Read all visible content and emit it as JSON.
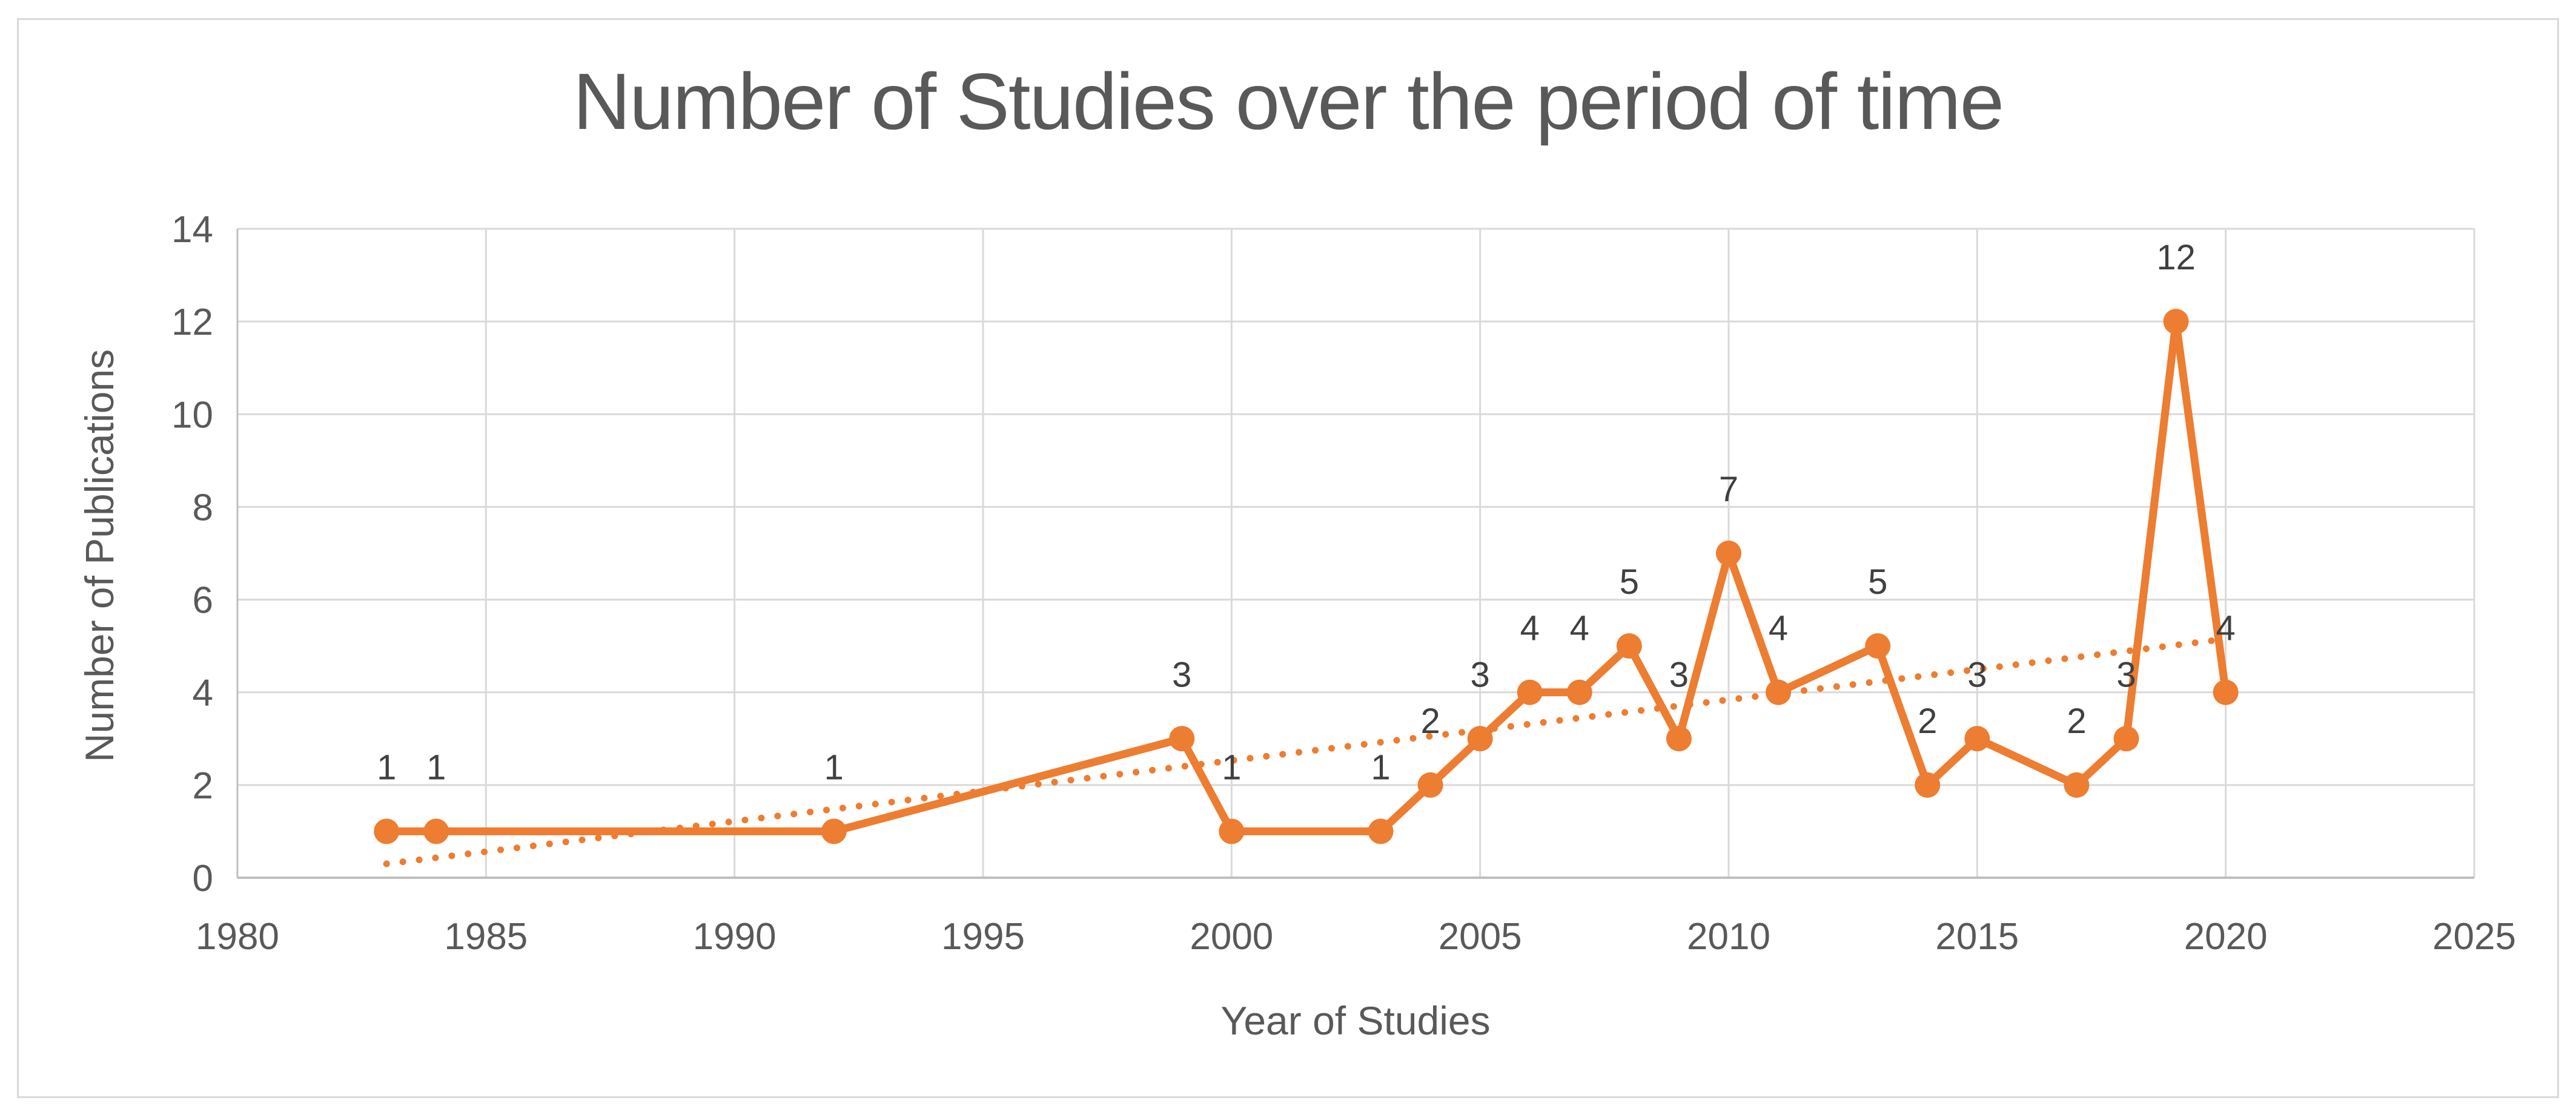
{
  "chart_data": {
    "type": "line",
    "title": "Number of Studies over the period of time",
    "xlabel": "Year of Studies",
    "ylabel": "Number of Publications",
    "x": [
      1983,
      1984,
      1992,
      1999,
      2000,
      2003,
      2004,
      2005,
      2006,
      2007,
      2008,
      2009,
      2010,
      2011,
      2013,
      2014,
      2015,
      2017,
      2018,
      2019,
      2020
    ],
    "y": [
      1,
      1,
      1,
      3,
      1,
      1,
      2,
      3,
      4,
      4,
      5,
      3,
      7,
      4,
      5,
      2,
      3,
      2,
      3,
      12,
      4
    ],
    "point_labels": [
      "1",
      "1",
      "1",
      "3",
      "1",
      "1",
      "2",
      "3",
      "4",
      "4",
      "5",
      "3",
      "7",
      "4",
      "5",
      "2",
      "3",
      "2",
      "3",
      "12",
      "4"
    ],
    "x_ticks": [
      1980,
      1985,
      1990,
      1995,
      2000,
      2005,
      2010,
      2015,
      2020,
      2025
    ],
    "y_ticks": [
      0,
      2,
      4,
      6,
      8,
      10,
      12,
      14
    ],
    "xlim": [
      1980,
      2025
    ],
    "ylim": [
      0,
      14
    ],
    "grid": true,
    "legend": "none",
    "marker": "circle",
    "trendline": {
      "style": "dotted",
      "x1": 1983,
      "y1": 0.3,
      "x2": 2020,
      "y2": 5.15
    },
    "colors": {
      "series": "#ED7D31",
      "trendline": "#ED7D31",
      "gridline": "#D9D9D9",
      "axis_line": "#BFBFBF",
      "title_text": "#595959",
      "tick_text": "#595959",
      "data_label_text": "#404040",
      "border": "#D9D9D9",
      "background": "#FFFFFF"
    }
  }
}
